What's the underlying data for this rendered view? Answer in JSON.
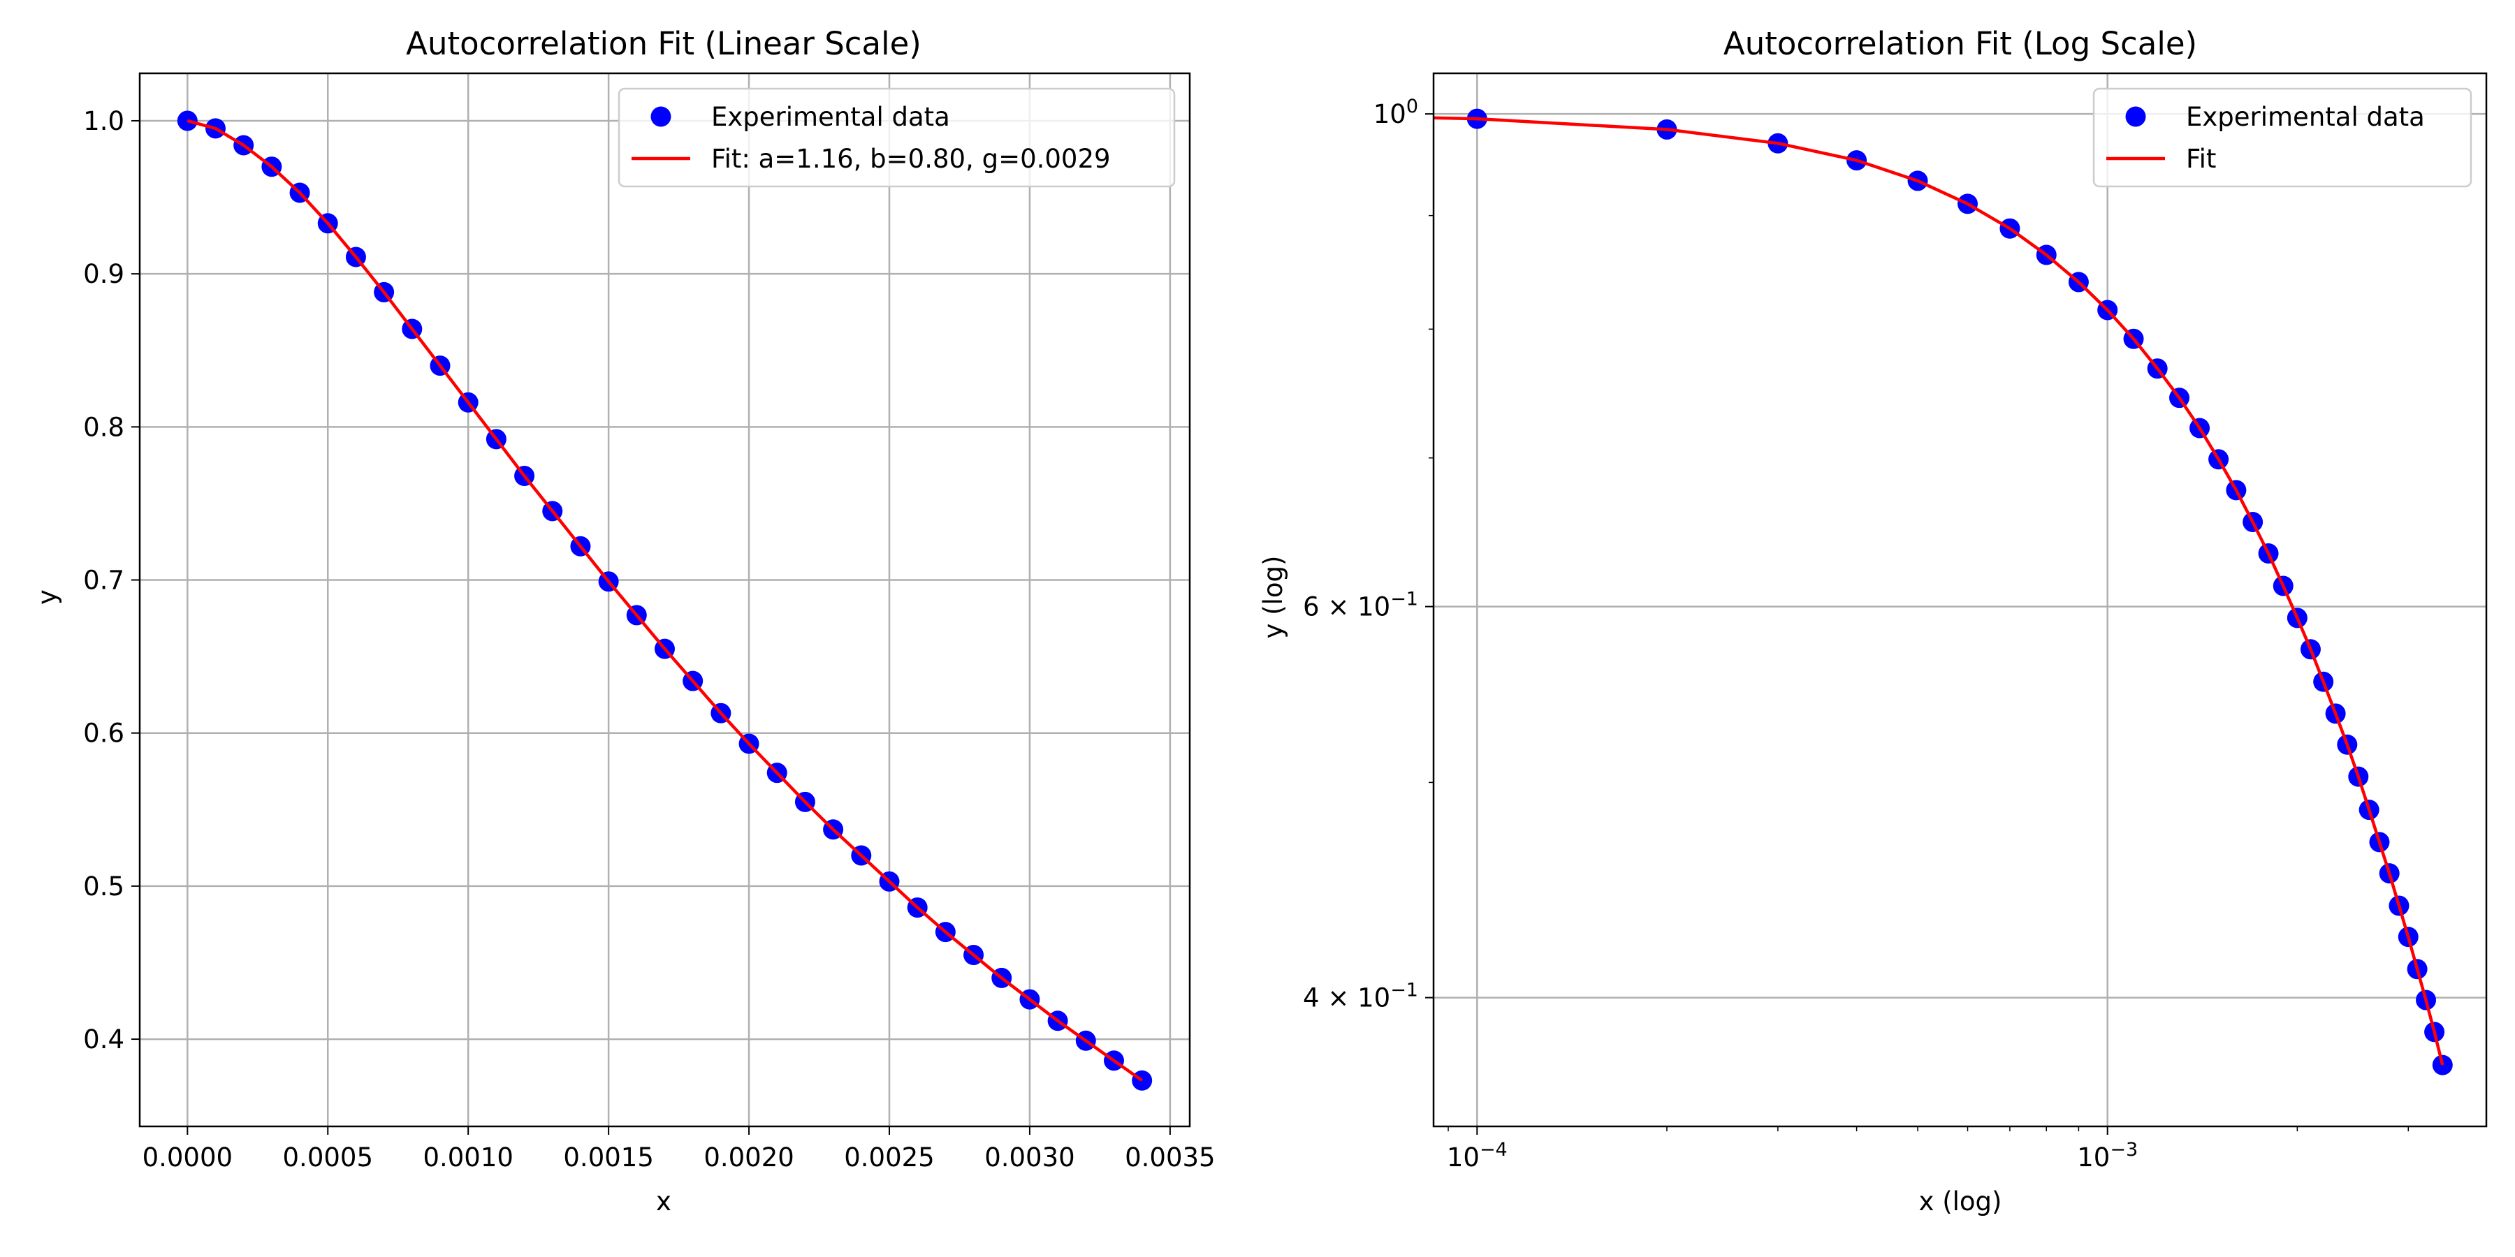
{
  "chart_data": [
    {
      "type": "scatter",
      "title": "Autocorrelation Fit (Linear Scale)",
      "xlabel": "x",
      "ylabel": "y",
      "xscale": "linear",
      "yscale": "linear",
      "xlim": [
        -0.00017,
        0.00357
      ],
      "ylim": [
        0.343,
        1.031
      ],
      "xticks": [
        0.0,
        0.0005,
        0.001,
        0.0015,
        0.002,
        0.0025,
        0.003,
        0.0035
      ],
      "xtick_labels": [
        "0.0000",
        "0.0005",
        "0.0010",
        "0.0015",
        "0.0020",
        "0.0025",
        "0.0030",
        "0.0035"
      ],
      "yticks": [
        0.4,
        0.5,
        0.6,
        0.7,
        0.8,
        0.9,
        1.0
      ],
      "ytick_labels": [
        "0.4",
        "0.5",
        "0.6",
        "0.7",
        "0.8",
        "0.9",
        "1.0"
      ],
      "grid": true,
      "legend_position": "top-right",
      "legend": [
        "Experimental data",
        "Fit: a=1.16, b=0.80, g=0.0029"
      ],
      "series": [
        {
          "name": "Experimental data",
          "kind": "scatter",
          "color": "#0000ff",
          "x": [
            0.0,
            0.0001,
            0.0002,
            0.0003,
            0.0004,
            0.0005,
            0.0006,
            0.0007,
            0.0008,
            0.0009,
            0.001,
            0.0011,
            0.0012,
            0.0013,
            0.0014,
            0.0015,
            0.0016,
            0.0017,
            0.0018,
            0.0019,
            0.002,
            0.0021,
            0.0022,
            0.0023,
            0.0024,
            0.0025,
            0.0026,
            0.0027,
            0.0028,
            0.0029,
            0.003,
            0.0031,
            0.0032,
            0.0033,
            0.0034
          ],
          "y": [
            1.0,
            0.995,
            0.984,
            0.97,
            0.953,
            0.933,
            0.911,
            0.888,
            0.864,
            0.84,
            0.816,
            0.792,
            0.768,
            0.745,
            0.722,
            0.699,
            0.677,
            0.655,
            0.634,
            0.613,
            0.593,
            0.574,
            0.555,
            0.537,
            0.52,
            0.503,
            0.486,
            0.47,
            0.455,
            0.44,
            0.426,
            0.412,
            0.399,
            0.386,
            0.373
          ]
        },
        {
          "name": "Fit: a=1.16, b=0.80, g=0.0029",
          "kind": "line",
          "color": "#ff0000",
          "x": [
            0.0,
            0.0001,
            0.0002,
            0.0003,
            0.0004,
            0.0005,
            0.0006,
            0.0007,
            0.0008,
            0.0009,
            0.001,
            0.0011,
            0.0012,
            0.0013,
            0.0014,
            0.0015,
            0.0016,
            0.0017,
            0.0018,
            0.0019,
            0.002,
            0.0021,
            0.0022,
            0.0023,
            0.0024,
            0.0025,
            0.0026,
            0.0027,
            0.0028,
            0.0029,
            0.003,
            0.0031,
            0.0032,
            0.0033,
            0.0034
          ],
          "y": [
            1.0,
            0.995,
            0.984,
            0.97,
            0.953,
            0.933,
            0.911,
            0.888,
            0.864,
            0.84,
            0.816,
            0.792,
            0.768,
            0.745,
            0.722,
            0.699,
            0.677,
            0.655,
            0.634,
            0.613,
            0.593,
            0.574,
            0.555,
            0.537,
            0.52,
            0.503,
            0.486,
            0.47,
            0.455,
            0.44,
            0.426,
            0.412,
            0.399,
            0.386,
            0.373
          ]
        }
      ]
    },
    {
      "type": "scatter",
      "title": "Autocorrelation Fit (Log Scale)",
      "xlabel": "x (log)",
      "ylabel": "y (log)",
      "xscale": "log",
      "yscale": "log",
      "xlim": [
        8.53e-05,
        0.00399
      ],
      "ylim": [
        0.35,
        1.043
      ],
      "xticks": [
        0.0001,
        0.001
      ],
      "xtick_labels": [
        [
          "10",
          "−4"
        ],
        [
          "10",
          "−3"
        ]
      ],
      "yticks": [
        1.0,
        0.6,
        0.4
      ],
      "ytick_labels": [
        [
          "10",
          "0"
        ],
        [
          "6 × 10",
          "−1"
        ],
        [
          "4 × 10",
          "−1"
        ]
      ],
      "grid": true,
      "legend_position": "top-right",
      "legend": [
        "Experimental data",
        "Fit"
      ],
      "series": [
        {
          "name": "Experimental data",
          "kind": "scatter",
          "color": "#0000ff",
          "x": [
            0.0001,
            0.0002,
            0.0003,
            0.0004,
            0.0005,
            0.0006,
            0.0007,
            0.0008,
            0.0009,
            0.001,
            0.0011,
            0.0012,
            0.0013,
            0.0014,
            0.0015,
            0.0016,
            0.0017,
            0.0018,
            0.0019,
            0.002,
            0.0021,
            0.0022,
            0.0023,
            0.0024,
            0.0025,
            0.0026,
            0.0027,
            0.0028,
            0.0029,
            0.003,
            0.0031,
            0.0032,
            0.0033,
            0.0034
          ],
          "y": [
            0.995,
            0.984,
            0.97,
            0.953,
            0.933,
            0.911,
            0.888,
            0.864,
            0.84,
            0.816,
            0.792,
            0.768,
            0.745,
            0.722,
            0.699,
            0.677,
            0.655,
            0.634,
            0.613,
            0.593,
            0.574,
            0.555,
            0.537,
            0.52,
            0.503,
            0.486,
            0.47,
            0.455,
            0.44,
            0.426,
            0.412,
            0.399,
            0.386,
            0.373
          ]
        },
        {
          "name": "Fit",
          "kind": "line",
          "color": "#ff0000",
          "x": [
            8.53e-05,
            0.0001,
            0.0002,
            0.0003,
            0.0004,
            0.0005,
            0.0006,
            0.0007,
            0.0008,
            0.0009,
            0.001,
            0.0011,
            0.0012,
            0.0013,
            0.0014,
            0.0015,
            0.0016,
            0.0017,
            0.0018,
            0.0019,
            0.002,
            0.0021,
            0.0022,
            0.0023,
            0.0024,
            0.0025,
            0.0026,
            0.0027,
            0.0028,
            0.0029,
            0.003,
            0.0031,
            0.0032,
            0.0033,
            0.0034
          ],
          "y": [
            0.996,
            0.995,
            0.984,
            0.97,
            0.953,
            0.933,
            0.911,
            0.888,
            0.864,
            0.84,
            0.816,
            0.792,
            0.768,
            0.745,
            0.722,
            0.699,
            0.677,
            0.655,
            0.634,
            0.613,
            0.593,
            0.574,
            0.555,
            0.537,
            0.52,
            0.503,
            0.486,
            0.47,
            0.455,
            0.44,
            0.426,
            0.412,
            0.399,
            0.386,
            0.373
          ]
        }
      ]
    }
  ]
}
